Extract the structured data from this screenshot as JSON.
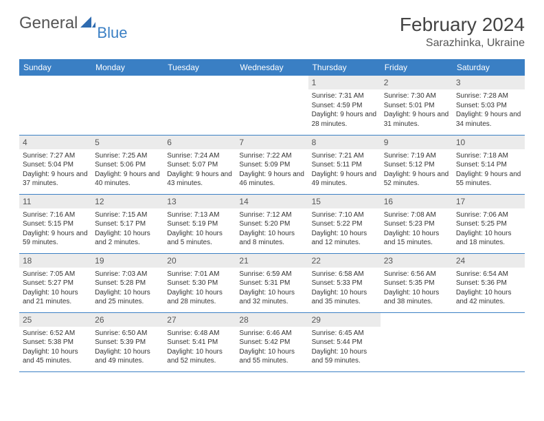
{
  "brand": {
    "text1": "General",
    "text2": "Blue"
  },
  "title": "February 2024",
  "location": "Sarazhinka, Ukraine",
  "colors": {
    "header_bg": "#3a7fc4",
    "header_text": "#ffffff",
    "daynum_bg": "#ebebeb",
    "border": "#3a7fc4",
    "page_bg": "#ffffff"
  },
  "day_headers": [
    "Sunday",
    "Monday",
    "Tuesday",
    "Wednesday",
    "Thursday",
    "Friday",
    "Saturday"
  ],
  "weeks": [
    [
      {
        "n": "",
        "sr": "",
        "ss": "",
        "dl": ""
      },
      {
        "n": "",
        "sr": "",
        "ss": "",
        "dl": ""
      },
      {
        "n": "",
        "sr": "",
        "ss": "",
        "dl": ""
      },
      {
        "n": "",
        "sr": "",
        "ss": "",
        "dl": ""
      },
      {
        "n": "1",
        "sr": "Sunrise: 7:31 AM",
        "ss": "Sunset: 4:59 PM",
        "dl": "Daylight: 9 hours and 28 minutes."
      },
      {
        "n": "2",
        "sr": "Sunrise: 7:30 AM",
        "ss": "Sunset: 5:01 PM",
        "dl": "Daylight: 9 hours and 31 minutes."
      },
      {
        "n": "3",
        "sr": "Sunrise: 7:28 AM",
        "ss": "Sunset: 5:03 PM",
        "dl": "Daylight: 9 hours and 34 minutes."
      }
    ],
    [
      {
        "n": "4",
        "sr": "Sunrise: 7:27 AM",
        "ss": "Sunset: 5:04 PM",
        "dl": "Daylight: 9 hours and 37 minutes."
      },
      {
        "n": "5",
        "sr": "Sunrise: 7:25 AM",
        "ss": "Sunset: 5:06 PM",
        "dl": "Daylight: 9 hours and 40 minutes."
      },
      {
        "n": "6",
        "sr": "Sunrise: 7:24 AM",
        "ss": "Sunset: 5:07 PM",
        "dl": "Daylight: 9 hours and 43 minutes."
      },
      {
        "n": "7",
        "sr": "Sunrise: 7:22 AM",
        "ss": "Sunset: 5:09 PM",
        "dl": "Daylight: 9 hours and 46 minutes."
      },
      {
        "n": "8",
        "sr": "Sunrise: 7:21 AM",
        "ss": "Sunset: 5:11 PM",
        "dl": "Daylight: 9 hours and 49 minutes."
      },
      {
        "n": "9",
        "sr": "Sunrise: 7:19 AM",
        "ss": "Sunset: 5:12 PM",
        "dl": "Daylight: 9 hours and 52 minutes."
      },
      {
        "n": "10",
        "sr": "Sunrise: 7:18 AM",
        "ss": "Sunset: 5:14 PM",
        "dl": "Daylight: 9 hours and 55 minutes."
      }
    ],
    [
      {
        "n": "11",
        "sr": "Sunrise: 7:16 AM",
        "ss": "Sunset: 5:15 PM",
        "dl": "Daylight: 9 hours and 59 minutes."
      },
      {
        "n": "12",
        "sr": "Sunrise: 7:15 AM",
        "ss": "Sunset: 5:17 PM",
        "dl": "Daylight: 10 hours and 2 minutes."
      },
      {
        "n": "13",
        "sr": "Sunrise: 7:13 AM",
        "ss": "Sunset: 5:19 PM",
        "dl": "Daylight: 10 hours and 5 minutes."
      },
      {
        "n": "14",
        "sr": "Sunrise: 7:12 AM",
        "ss": "Sunset: 5:20 PM",
        "dl": "Daylight: 10 hours and 8 minutes."
      },
      {
        "n": "15",
        "sr": "Sunrise: 7:10 AM",
        "ss": "Sunset: 5:22 PM",
        "dl": "Daylight: 10 hours and 12 minutes."
      },
      {
        "n": "16",
        "sr": "Sunrise: 7:08 AM",
        "ss": "Sunset: 5:23 PM",
        "dl": "Daylight: 10 hours and 15 minutes."
      },
      {
        "n": "17",
        "sr": "Sunrise: 7:06 AM",
        "ss": "Sunset: 5:25 PM",
        "dl": "Daylight: 10 hours and 18 minutes."
      }
    ],
    [
      {
        "n": "18",
        "sr": "Sunrise: 7:05 AM",
        "ss": "Sunset: 5:27 PM",
        "dl": "Daylight: 10 hours and 21 minutes."
      },
      {
        "n": "19",
        "sr": "Sunrise: 7:03 AM",
        "ss": "Sunset: 5:28 PM",
        "dl": "Daylight: 10 hours and 25 minutes."
      },
      {
        "n": "20",
        "sr": "Sunrise: 7:01 AM",
        "ss": "Sunset: 5:30 PM",
        "dl": "Daylight: 10 hours and 28 minutes."
      },
      {
        "n": "21",
        "sr": "Sunrise: 6:59 AM",
        "ss": "Sunset: 5:31 PM",
        "dl": "Daylight: 10 hours and 32 minutes."
      },
      {
        "n": "22",
        "sr": "Sunrise: 6:58 AM",
        "ss": "Sunset: 5:33 PM",
        "dl": "Daylight: 10 hours and 35 minutes."
      },
      {
        "n": "23",
        "sr": "Sunrise: 6:56 AM",
        "ss": "Sunset: 5:35 PM",
        "dl": "Daylight: 10 hours and 38 minutes."
      },
      {
        "n": "24",
        "sr": "Sunrise: 6:54 AM",
        "ss": "Sunset: 5:36 PM",
        "dl": "Daylight: 10 hours and 42 minutes."
      }
    ],
    [
      {
        "n": "25",
        "sr": "Sunrise: 6:52 AM",
        "ss": "Sunset: 5:38 PM",
        "dl": "Daylight: 10 hours and 45 minutes."
      },
      {
        "n": "26",
        "sr": "Sunrise: 6:50 AM",
        "ss": "Sunset: 5:39 PM",
        "dl": "Daylight: 10 hours and 49 minutes."
      },
      {
        "n": "27",
        "sr": "Sunrise: 6:48 AM",
        "ss": "Sunset: 5:41 PM",
        "dl": "Daylight: 10 hours and 52 minutes."
      },
      {
        "n": "28",
        "sr": "Sunrise: 6:46 AM",
        "ss": "Sunset: 5:42 PM",
        "dl": "Daylight: 10 hours and 55 minutes."
      },
      {
        "n": "29",
        "sr": "Sunrise: 6:45 AM",
        "ss": "Sunset: 5:44 PM",
        "dl": "Daylight: 10 hours and 59 minutes."
      },
      {
        "n": "",
        "sr": "",
        "ss": "",
        "dl": ""
      },
      {
        "n": "",
        "sr": "",
        "ss": "",
        "dl": ""
      }
    ]
  ]
}
